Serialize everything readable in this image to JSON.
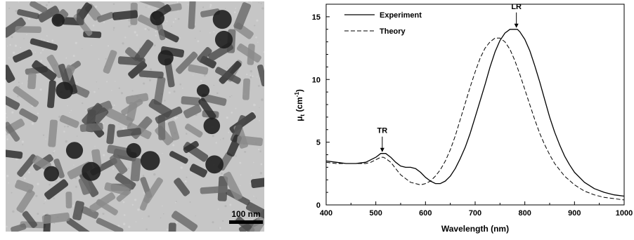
{
  "tem_image": {
    "scale_bar_label": "100 nm",
    "background_color": "#c6c6c6",
    "particle_colors": [
      "#2a2a2a",
      "#4a4a4a",
      "#6a6a6a",
      "#8a8a8a"
    ]
  },
  "chart_data": {
    "type": "line",
    "xlabel": "Wavelength (nm)",
    "ylabel_main": "μ",
    "ylabel_sub": "t",
    "ylabel_unit_pre": " (cm",
    "ylabel_unit_sup": "-1",
    "ylabel_unit_post": ")",
    "xlim": [
      400,
      1000
    ],
    "ylim": [
      0,
      16
    ],
    "x_ticks": [
      400,
      500,
      600,
      700,
      800,
      900,
      1000
    ],
    "x_tick_labels": [
      "400",
      "500",
      "600",
      "700",
      "800",
      "900",
      "1000"
    ],
    "y_ticks": [
      0,
      5,
      10,
      15
    ],
    "y_tick_labels": [
      "0",
      "5",
      "10",
      "15"
    ],
    "grid": false,
    "legend_position": "top-left",
    "series": [
      {
        "name": "Experiment",
        "line_style": "solid",
        "color": "#000000",
        "x": [
          400,
          420,
          440,
          460,
          480,
          500,
          510,
          520,
          530,
          540,
          550,
          560,
          570,
          580,
          590,
          600,
          610,
          620,
          630,
          640,
          650,
          660,
          670,
          680,
          690,
          700,
          710,
          720,
          730,
          740,
          750,
          760,
          770,
          780,
          785,
          790,
          800,
          810,
          820,
          830,
          840,
          850,
          860,
          870,
          880,
          890,
          900,
          920,
          940,
          960,
          980,
          1000
        ],
        "y": [
          3.5,
          3.4,
          3.3,
          3.3,
          3.4,
          3.8,
          4.1,
          4.1,
          3.8,
          3.4,
          3.1,
          3.0,
          3.0,
          2.9,
          2.6,
          2.2,
          1.9,
          1.7,
          1.7,
          1.9,
          2.3,
          2.9,
          3.7,
          4.6,
          5.7,
          7.0,
          8.3,
          9.6,
          11.0,
          12.2,
          13.1,
          13.7,
          14.0,
          14.0,
          14.0,
          13.8,
          13.2,
          12.3,
          11.1,
          9.8,
          8.4,
          7.0,
          5.8,
          4.8,
          3.9,
          3.2,
          2.6,
          1.8,
          1.3,
          1.0,
          0.8,
          0.7
        ]
      },
      {
        "name": "Theory",
        "line_style": "dashed",
        "color": "#000000",
        "x": [
          400,
          420,
          440,
          460,
          480,
          490,
          500,
          510,
          515,
          520,
          530,
          540,
          550,
          560,
          570,
          580,
          590,
          600,
          610,
          620,
          630,
          640,
          650,
          660,
          670,
          680,
          690,
          700,
          710,
          720,
          730,
          740,
          750,
          760,
          770,
          780,
          790,
          800,
          810,
          820,
          830,
          840,
          850,
          860,
          870,
          880,
          900,
          920,
          940,
          960,
          980,
          1000
        ],
        "y": [
          3.4,
          3.3,
          3.3,
          3.3,
          3.3,
          3.4,
          3.6,
          3.8,
          3.8,
          3.7,
          3.4,
          2.9,
          2.4,
          2.1,
          1.8,
          1.7,
          1.6,
          1.7,
          1.9,
          2.3,
          2.8,
          3.5,
          4.4,
          5.5,
          6.8,
          8.1,
          9.4,
          10.6,
          11.7,
          12.5,
          13.0,
          13.3,
          13.3,
          13.0,
          12.4,
          11.5,
          10.4,
          9.2,
          8.0,
          6.8,
          5.7,
          4.8,
          4.0,
          3.3,
          2.8,
          2.3,
          1.6,
          1.1,
          0.8,
          0.6,
          0.5,
          0.4
        ]
      }
    ],
    "annotations": [
      {
        "label": "TR",
        "x": 513,
        "y": 4.1
      },
      {
        "label": "LR",
        "x": 783,
        "y": 14.0
      }
    ]
  }
}
